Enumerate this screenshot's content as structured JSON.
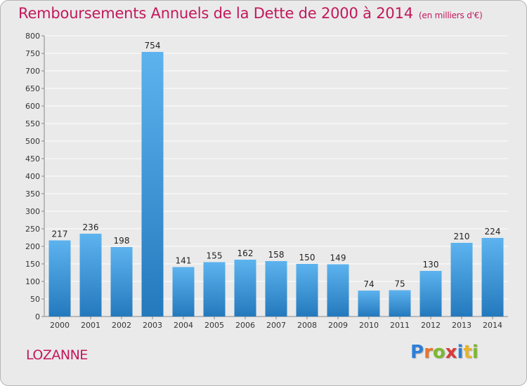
{
  "header": {
    "title": "Remboursements Annuels de la Dette de 2000 à 2014",
    "unit": "(en milliers d'€)"
  },
  "footer": {
    "place": "LOZANNE",
    "logo_letters": [
      "P",
      "r",
      "o",
      "x",
      "i",
      "t",
      "i"
    ],
    "logo_colors": [
      "#2e7fd6",
      "#e8742a",
      "#7cb82f",
      "#d83a3a",
      "#2e7fd6",
      "#e8b52a",
      "#7cb82f"
    ]
  },
  "colors": {
    "title": "#c2185b",
    "bar_top": "#5db3ee",
    "bar_bottom": "#2479bd",
    "grid": "#ffffff",
    "background": "#eaeaea"
  },
  "chart_data": {
    "type": "bar",
    "categories": [
      "2000",
      "2001",
      "2002",
      "2003",
      "2004",
      "2005",
      "2006",
      "2007",
      "2008",
      "2009",
      "2010",
      "2011",
      "2012",
      "2013",
      "2014"
    ],
    "values": [
      217,
      236,
      198,
      754,
      141,
      155,
      162,
      158,
      150,
      149,
      74,
      75,
      130,
      210,
      224
    ],
    "ylim": [
      0,
      800
    ],
    "yticks": [
      0,
      50,
      100,
      150,
      200,
      250,
      300,
      350,
      400,
      450,
      500,
      550,
      600,
      650,
      700,
      750,
      800
    ],
    "grid": true,
    "data_labels": true
  }
}
